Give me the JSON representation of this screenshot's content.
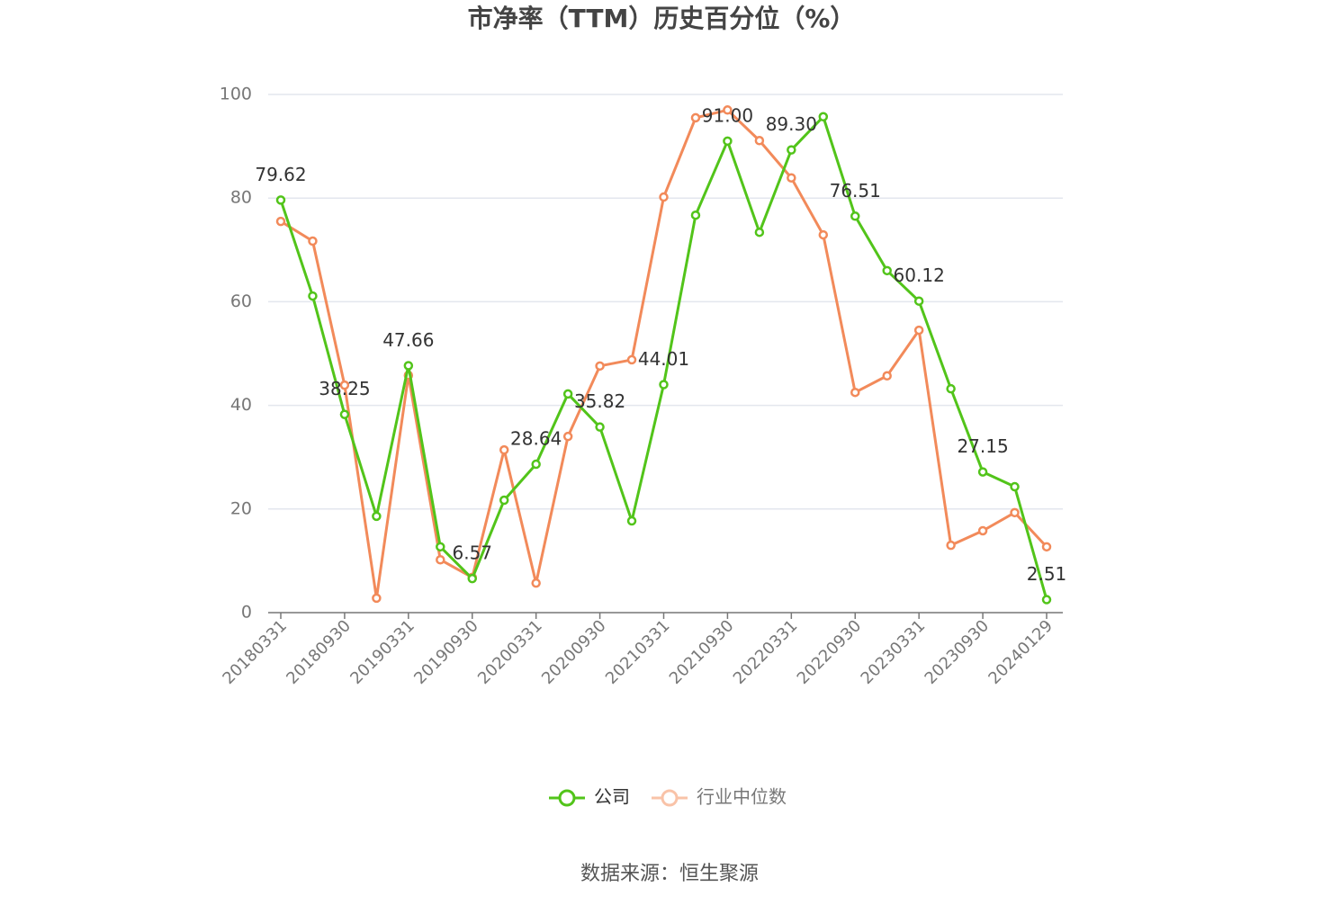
{
  "chart_data": {
    "type": "line",
    "title": "市净率（TTM）历史百分位（%）",
    "source": "数据来源：恒生聚源",
    "categories": [
      "20180331",
      null,
      "20180930",
      null,
      "20190331",
      null,
      "20190930",
      null,
      "20200331",
      null,
      "20200930",
      null,
      "20210331",
      null,
      "20210930",
      null,
      "20220331",
      null,
      "20220930",
      null,
      "20230331",
      null,
      "20230930",
      null,
      "20240129"
    ],
    "series": [
      {
        "name": "公司",
        "color": "#52c41a",
        "values": [
          79.62,
          61.1,
          38.25,
          18.6,
          47.66,
          12.7,
          6.57,
          21.7,
          28.64,
          42.2,
          35.82,
          17.7,
          44.01,
          76.7,
          91.0,
          73.4,
          89.3,
          95.7,
          76.51,
          66.0,
          60.12,
          43.2,
          27.15,
          24.3,
          2.51
        ],
        "value_labels": [
          "79.62",
          null,
          "38.25",
          null,
          "47.66",
          null,
          "6.57",
          null,
          "28.64",
          null,
          "35.82",
          null,
          "44.01",
          null,
          "91.00",
          null,
          "89.30",
          null,
          "76.51",
          null,
          "60.12",
          null,
          "27.15",
          null,
          "2.51"
        ]
      },
      {
        "name": "行业中位数",
        "color": "#f28a5a",
        "values": [
          75.5,
          71.7,
          43.9,
          2.8,
          45.8,
          10.2,
          6.8,
          31.4,
          5.7,
          34.0,
          47.6,
          48.8,
          80.2,
          95.5,
          97.0,
          91.1,
          83.9,
          72.9,
          42.5,
          45.7,
          54.5,
          13.0,
          15.8,
          19.3,
          12.7
        ]
      }
    ],
    "ylim": [
      0,
      100
    ],
    "yticks": [
      0,
      20,
      40,
      60,
      80,
      100
    ],
    "grid": true
  }
}
